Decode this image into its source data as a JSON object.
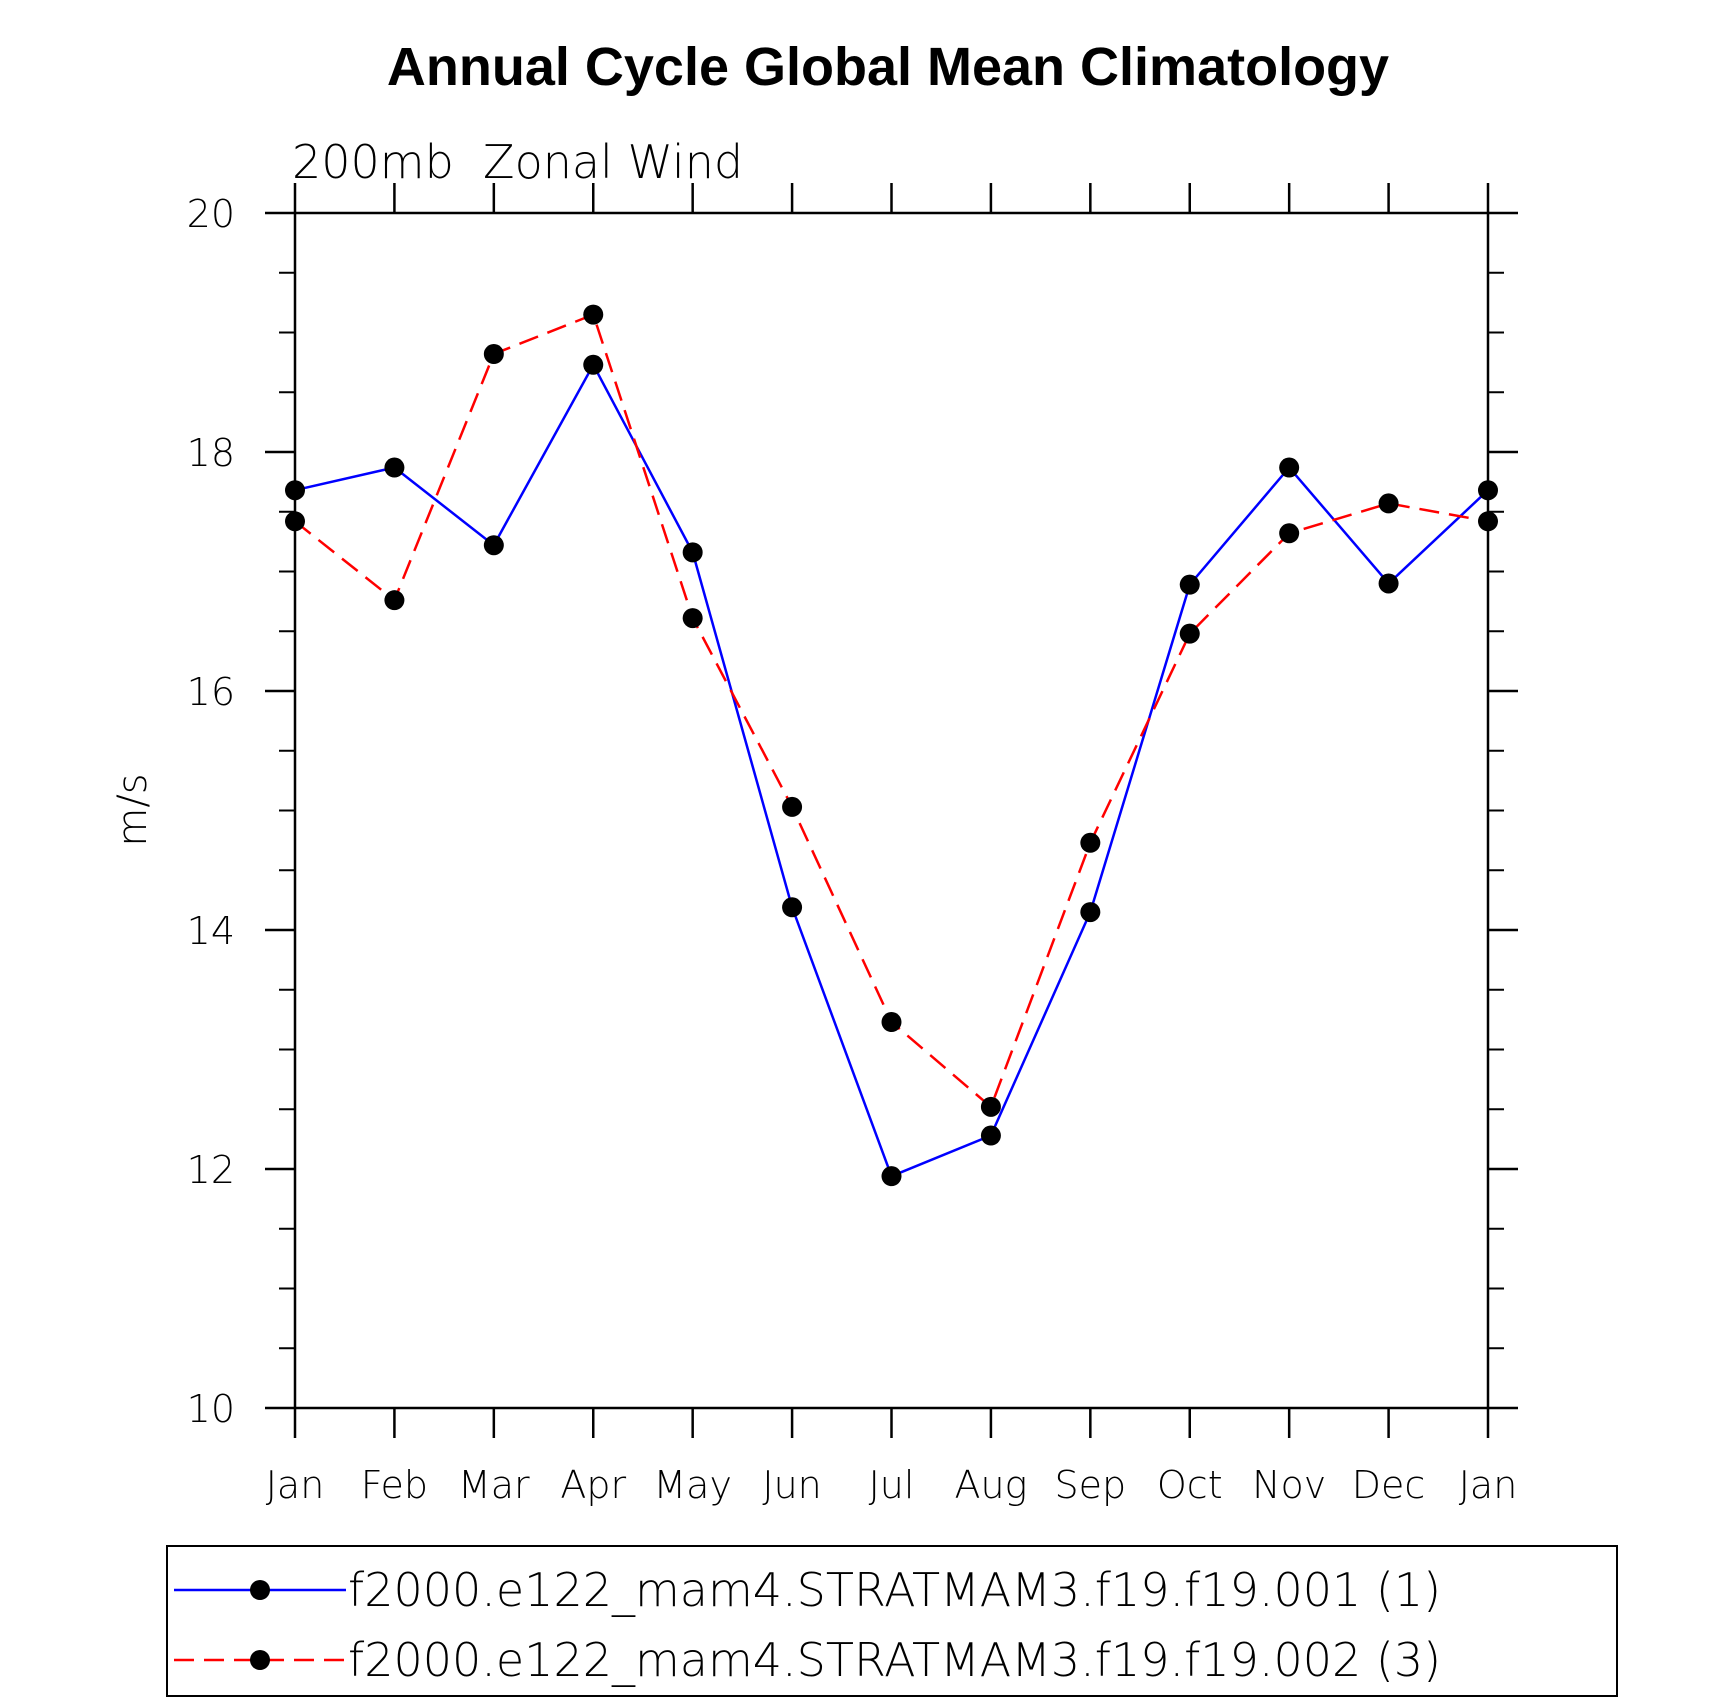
{
  "chart_data": {
    "type": "line",
    "title": "Annual Cycle Global Mean Climatology",
    "subtitle": "200mb  Zonal Wind",
    "xlabel": "",
    "ylabel": "m/s",
    "categories": [
      "Jan",
      "Feb",
      "Mar",
      "Apr",
      "May",
      "Jun",
      "Jul",
      "Aug",
      "Sep",
      "Oct",
      "Nov",
      "Dec",
      "Jan"
    ],
    "ylim": [
      10,
      20
    ],
    "yticks": [
      "10",
      "12",
      "14",
      "16",
      "18",
      "20"
    ],
    "grid": false,
    "legend_position": "bottom",
    "series": [
      {
        "name": "f2000.e122_mam4.STRATMAM3.f19.f19.001 (1)",
        "color": "#0000ff",
        "line_style": "solid",
        "marker": "filled-circle",
        "values": [
          17.68,
          17.87,
          17.22,
          18.73,
          17.16,
          14.19,
          11.94,
          12.28,
          14.15,
          16.89,
          17.87,
          16.9,
          17.68
        ]
      },
      {
        "name": "f2000.e122_mam4.STRATMAM3.f19.f19.002 (3)",
        "color": "#ff0000",
        "line_style": "dashed",
        "marker": "filled-circle",
        "values": [
          17.42,
          16.76,
          18.82,
          19.15,
          16.61,
          15.03,
          13.23,
          12.52,
          14.73,
          16.48,
          17.32,
          17.57,
          17.42
        ]
      }
    ]
  }
}
